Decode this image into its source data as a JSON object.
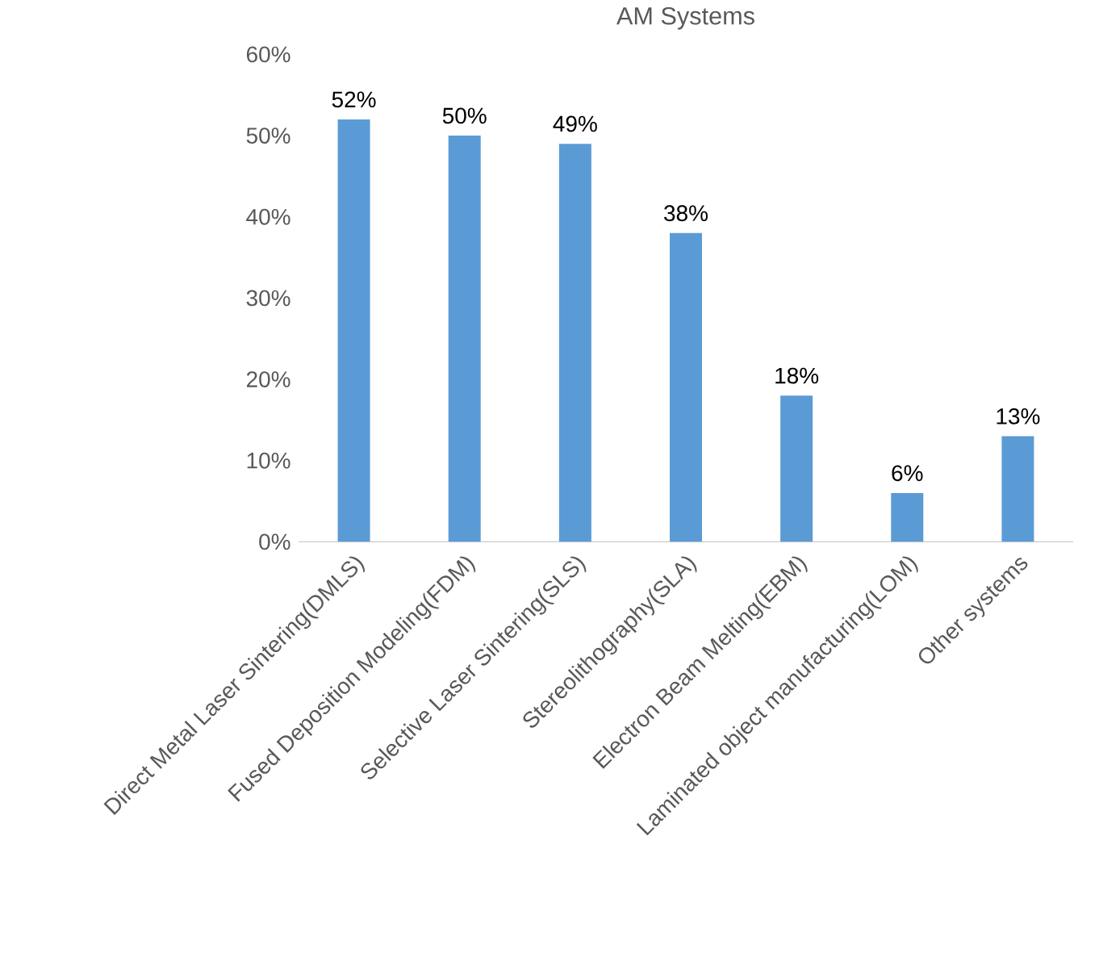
{
  "chart_data": {
    "type": "bar",
    "title": "AM Systems",
    "categories": [
      "Direct Metal Laser Sintering(DMLS)",
      "Fused Deposition Modeling(FDM)",
      "Selective Laser Sintering(SLS)",
      "Stereolithography(SLA)",
      "Electron Beam Melting(EBM)",
      "Laminated object manufacturing(LOM)",
      "Other systems"
    ],
    "values": [
      52,
      50,
      49,
      38,
      18,
      6,
      13
    ],
    "value_labels": [
      "52%",
      "50%",
      "49%",
      "38%",
      "18%",
      "6%",
      "13%"
    ],
    "color": "#5b9bd5",
    "ylim": [
      0,
      60
    ],
    "yticks": [
      {
        "value": 0,
        "label": "0%"
      },
      {
        "value": 10,
        "label": "10%"
      },
      {
        "value": 20,
        "label": "20%"
      },
      {
        "value": 30,
        "label": "30%"
      },
      {
        "value": 40,
        "label": "40%"
      },
      {
        "value": 50,
        "label": "50%"
      },
      {
        "value": 60,
        "label": "60%"
      }
    ],
    "grid": false
  }
}
